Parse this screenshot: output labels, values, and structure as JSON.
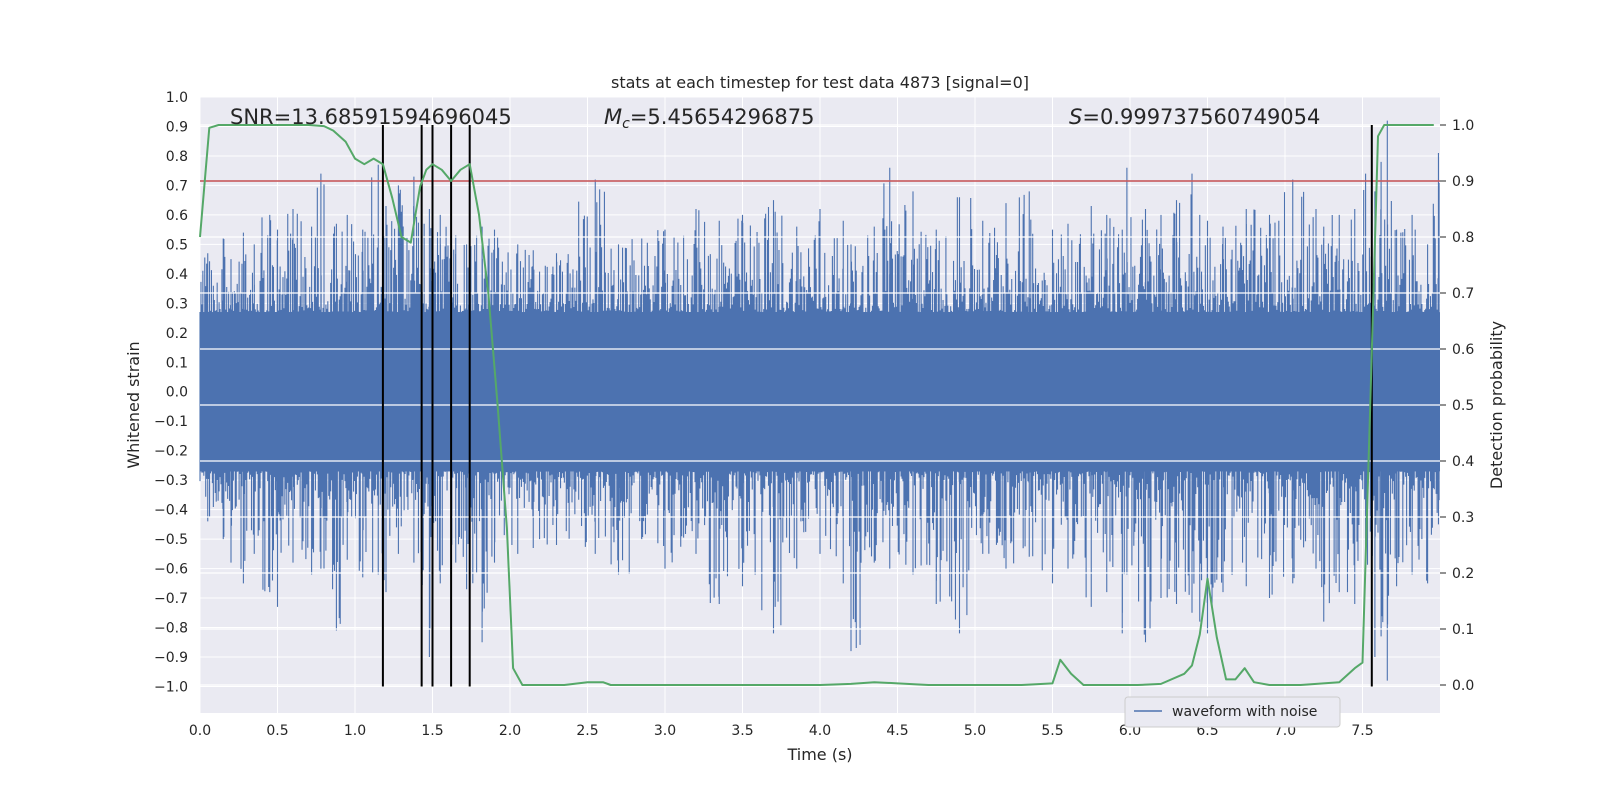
{
  "chart_data": {
    "type": "line",
    "title": "stats at each timestep for test data 4873 [signal=0]",
    "xlabel": "Time (s)",
    "ylabel": "Whitened strain",
    "y2label": "Detection probability",
    "xlim": [
      0.0,
      8.0
    ],
    "ylim": [
      -1.09,
      1.0
    ],
    "y2lim": [
      -0.05,
      1.05
    ],
    "x_ticks": [
      "0.0",
      "0.5",
      "1.0",
      "1.5",
      "2.0",
      "2.5",
      "3.0",
      "3.5",
      "4.0",
      "4.5",
      "5.0",
      "5.5",
      "6.0",
      "6.5",
      "7.0",
      "7.5"
    ],
    "y_ticks": [
      "1.0",
      "0.9",
      "0.8",
      "0.7",
      "0.6",
      "0.5",
      "0.4",
      "0.3",
      "0.2",
      "0.1",
      "0.0",
      "−0.1",
      "−0.2",
      "−0.3",
      "−0.4",
      "−0.5",
      "−0.6",
      "−0.7",
      "−0.8",
      "−0.9",
      "−1.0"
    ],
    "y2_ticks": [
      "1.0",
      "0.9",
      "0.8",
      "0.7",
      "0.6",
      "0.5",
      "0.4",
      "0.3",
      "0.2",
      "0.1",
      "0.0"
    ],
    "grid": true,
    "annotations": {
      "snr": "SNR=13.68591594696045",
      "mc_symbol": "M",
      "mc_sub": "c",
      "mc_value": "=5.45654296875",
      "s_symbol": "S",
      "s_value": "=0.999737560749054"
    },
    "legend": {
      "position": "lower-right",
      "entries": [
        "waveform with noise"
      ]
    },
    "waveform": {
      "name": "waveform with noise",
      "color": "#4c72b0",
      "core_envelope": 0.27,
      "spikes": [
        [
          0.05,
          0.47,
          -0.44
        ],
        [
          0.15,
          0.52,
          -0.5
        ],
        [
          0.2,
          0.45,
          -0.58
        ],
        [
          0.28,
          0.54,
          -0.65
        ],
        [
          0.35,
          0.5,
          -0.55
        ],
        [
          0.45,
          0.6,
          -0.68
        ],
        [
          0.5,
          0.55,
          -0.73
        ],
        [
          0.6,
          0.62,
          -0.58
        ],
        [
          0.72,
          0.56,
          -0.62
        ],
        [
          0.78,
          0.74,
          -0.6
        ],
        [
          0.88,
          0.57,
          -0.81
        ],
        [
          0.95,
          0.6,
          -0.57
        ],
        [
          1.05,
          0.55,
          -0.63
        ],
        [
          1.15,
          0.77,
          -0.62
        ],
        [
          1.2,
          0.63,
          -0.68
        ],
        [
          1.28,
          0.7,
          -0.55
        ],
        [
          1.38,
          0.73,
          -0.58
        ],
        [
          1.48,
          0.62,
          -0.9
        ],
        [
          1.55,
          0.6,
          -0.65
        ],
        [
          1.65,
          0.53,
          -0.58
        ],
        [
          1.72,
          0.5,
          -0.67
        ],
        [
          1.82,
          0.56,
          -0.85
        ],
        [
          1.9,
          0.55,
          -0.58
        ],
        [
          2.05,
          0.5,
          -0.55
        ],
        [
          2.15,
          0.48,
          -0.53
        ],
        [
          2.3,
          0.47,
          -0.52
        ],
        [
          2.55,
          0.72,
          -0.55
        ],
        [
          2.7,
          0.5,
          -0.62
        ],
        [
          2.85,
          0.52,
          -0.5
        ],
        [
          3.0,
          0.55,
          -0.6
        ],
        [
          3.2,
          0.62,
          -0.55
        ],
        [
          3.35,
          0.58,
          -0.72
        ],
        [
          3.5,
          0.6,
          -0.66
        ],
        [
          3.7,
          0.65,
          -0.82
        ],
        [
          3.85,
          0.56,
          -0.6
        ],
        [
          4.0,
          0.62,
          -0.55
        ],
        [
          4.15,
          0.58,
          -0.65
        ],
        [
          4.2,
          0.5,
          -0.88
        ],
        [
          4.35,
          0.56,
          -0.58
        ],
        [
          4.45,
          0.76,
          -0.6
        ],
        [
          4.6,
          0.68,
          -0.62
        ],
        [
          4.75,
          0.55,
          -0.72
        ],
        [
          4.9,
          0.66,
          -0.82
        ],
        [
          5.05,
          0.58,
          -0.55
        ],
        [
          5.2,
          0.64,
          -0.6
        ],
        [
          5.35,
          0.68,
          -0.56
        ],
        [
          5.5,
          0.55,
          -0.65
        ],
        [
          5.6,
          0.57,
          -0.6
        ],
        [
          5.75,
          0.63,
          -0.73
        ],
        [
          5.85,
          0.6,
          -0.68
        ],
        [
          5.95,
          0.55,
          -0.82
        ],
        [
          5.98,
          0.76,
          -0.62
        ],
        [
          6.1,
          0.62,
          -0.85
        ],
        [
          6.2,
          0.6,
          -0.7
        ],
        [
          6.3,
          0.65,
          -0.72
        ],
        [
          6.4,
          0.74,
          -0.75
        ],
        [
          6.45,
          0.6,
          -0.78
        ],
        [
          6.5,
          0.58,
          -0.82
        ],
        [
          6.6,
          0.56,
          -0.68
        ],
        [
          6.75,
          0.62,
          -0.66
        ],
        [
          6.9,
          0.6,
          -0.7
        ],
        [
          7.05,
          0.72,
          -0.65
        ],
        [
          7.2,
          0.62,
          -0.6
        ],
        [
          7.25,
          0.56,
          -0.78
        ],
        [
          7.35,
          0.6,
          -0.68
        ],
        [
          7.45,
          0.62,
          -0.72
        ],
        [
          7.52,
          0.74,
          -0.6
        ],
        [
          7.58,
          0.68,
          -0.9
        ],
        [
          7.62,
          0.78,
          -0.83
        ],
        [
          7.66,
          0.92,
          -0.98
        ],
        [
          7.72,
          0.55,
          -0.66
        ],
        [
          7.82,
          0.6,
          -0.62
        ],
        [
          7.92,
          0.5,
          -0.65
        ],
        [
          7.99,
          0.81,
          -0.45
        ]
      ]
    },
    "threshold": {
      "value": 0.9,
      "axis": "y2",
      "color": "#c44e52"
    },
    "probability": {
      "color": "#55a868",
      "x": [
        0.0,
        0.06,
        0.12,
        0.2,
        0.3,
        0.4,
        0.5,
        0.6,
        0.7,
        0.8,
        0.86,
        0.94,
        1.0,
        1.06,
        1.12,
        1.18,
        1.24,
        1.3,
        1.36,
        1.42,
        1.46,
        1.5,
        1.56,
        1.62,
        1.68,
        1.74,
        1.8,
        1.86,
        1.92,
        1.98,
        2.02,
        2.08,
        2.2,
        2.35,
        2.5,
        2.6,
        2.65,
        2.8,
        3.0,
        3.5,
        4.0,
        4.2,
        4.35,
        4.5,
        4.7,
        5.0,
        5.3,
        5.5,
        5.55,
        5.62,
        5.7,
        5.9,
        6.05,
        6.2,
        6.35,
        6.4,
        6.45,
        6.5,
        6.56,
        6.62,
        6.68,
        6.74,
        6.8,
        6.9,
        7.1,
        7.35,
        7.45,
        7.5,
        7.55,
        7.6,
        7.64,
        7.68,
        7.75,
        7.8,
        7.96
      ],
      "values": [
        0.8,
        0.995,
        1.0,
        1.0,
        1.0,
        1.0,
        1.0,
        1.0,
        1.0,
        0.998,
        0.99,
        0.97,
        0.94,
        0.93,
        0.94,
        0.93,
        0.87,
        0.8,
        0.79,
        0.89,
        0.92,
        0.93,
        0.92,
        0.9,
        0.92,
        0.93,
        0.84,
        0.7,
        0.5,
        0.28,
        0.03,
        0.0,
        0.0,
        0.0,
        0.005,
        0.005,
        0.0,
        0.0,
        0.0,
        0.0,
        0.0,
        0.002,
        0.005,
        0.003,
        0.0,
        0.0,
        0.0,
        0.003,
        0.045,
        0.02,
        0.0,
        0.0,
        0.0,
        0.002,
        0.02,
        0.035,
        0.09,
        0.19,
        0.085,
        0.01,
        0.01,
        0.03,
        0.005,
        0.0,
        0.0,
        0.005,
        0.03,
        0.04,
        0.5,
        0.98,
        1.0,
        1.0,
        1.0,
        1.0,
        1.0
      ]
    },
    "detection_lines": {
      "color": "#000000",
      "x": [
        1.18,
        1.43,
        1.5,
        1.62,
        1.74,
        7.56
      ],
      "y2_top": 1.0,
      "y_bottom": -1.0
    }
  }
}
